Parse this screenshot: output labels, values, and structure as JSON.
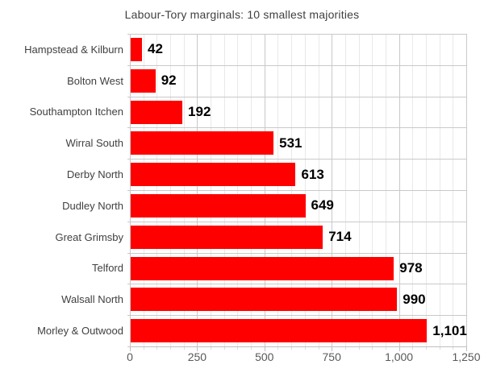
{
  "chart_data": {
    "type": "bar",
    "orientation": "horizontal",
    "title": "Labour-Tory marginals: 10 smallest majorities",
    "categories": [
      "Hampstead & Kilburn",
      "Bolton West",
      "Southampton Itchen",
      "Wirral South",
      "Derby North",
      "Dudley North",
      "Great Grimsby",
      "Telford",
      "Walsall North",
      "Morley & Outwood"
    ],
    "values": [
      42,
      92,
      192,
      531,
      613,
      649,
      714,
      978,
      990,
      1101
    ],
    "value_labels": [
      "42",
      "92",
      "192",
      "531",
      "613",
      "649",
      "714",
      "978",
      "990",
      "1,101"
    ],
    "xlabel": "",
    "ylabel": "",
    "xlim": [
      0,
      1250
    ],
    "x_major_ticks": [
      0,
      250,
      500,
      750,
      1000,
      1250
    ],
    "x_tick_labels": [
      "0",
      "250",
      "500",
      "750",
      "1,000",
      "1,250"
    ],
    "x_minor_step": 50,
    "grid": "vertical major+minor gridlines, horizontal row-boundary lines",
    "legend_position": "none"
  },
  "colors": {
    "bar": "#ff0000",
    "value_label": "#000000",
    "category_label": "#404040",
    "title": "#404040",
    "axis_tick_label": "#595959",
    "grid_major": "#c9c9c9",
    "grid_minor": "#e9e9e9",
    "axis_line": "#bfbfbf",
    "background": "#ffffff"
  }
}
